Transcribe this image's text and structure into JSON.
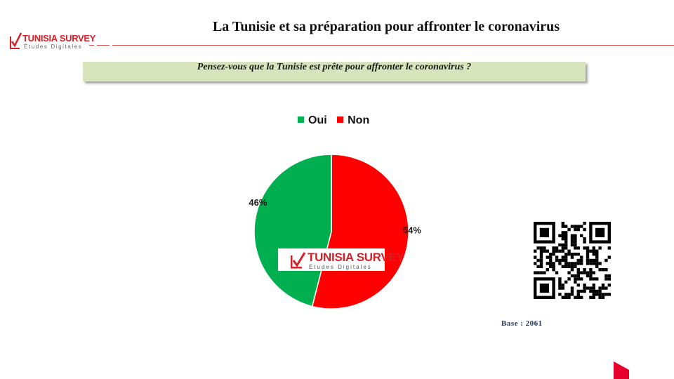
{
  "header": {
    "title": "La Tunisie et sa préparation pour affronter le coronavirus",
    "logo_name": "TUNISIA SURVEY",
    "logo_tagline": "Études Digitales"
  },
  "question": "Pensez-vous que la Tunisie est prête pour affronter le coronavirus ?",
  "watermark": {
    "name": "TUNISIA SURVEY",
    "tagline": "Études Digitales"
  },
  "footer": {
    "base_label": "Base : 2061"
  },
  "colors": {
    "oui": "#00b050",
    "non": "#ff0000",
    "brand_red": "#d62027",
    "question_bg": "#d8e4bc"
  },
  "chart_data": {
    "type": "pie",
    "title": "",
    "categories": [
      "Oui",
      "Non"
    ],
    "values": [
      46,
      54
    ],
    "labels": [
      "46%",
      "54%"
    ],
    "legend": "top",
    "colors": [
      "#00b050",
      "#ff0000"
    ]
  }
}
